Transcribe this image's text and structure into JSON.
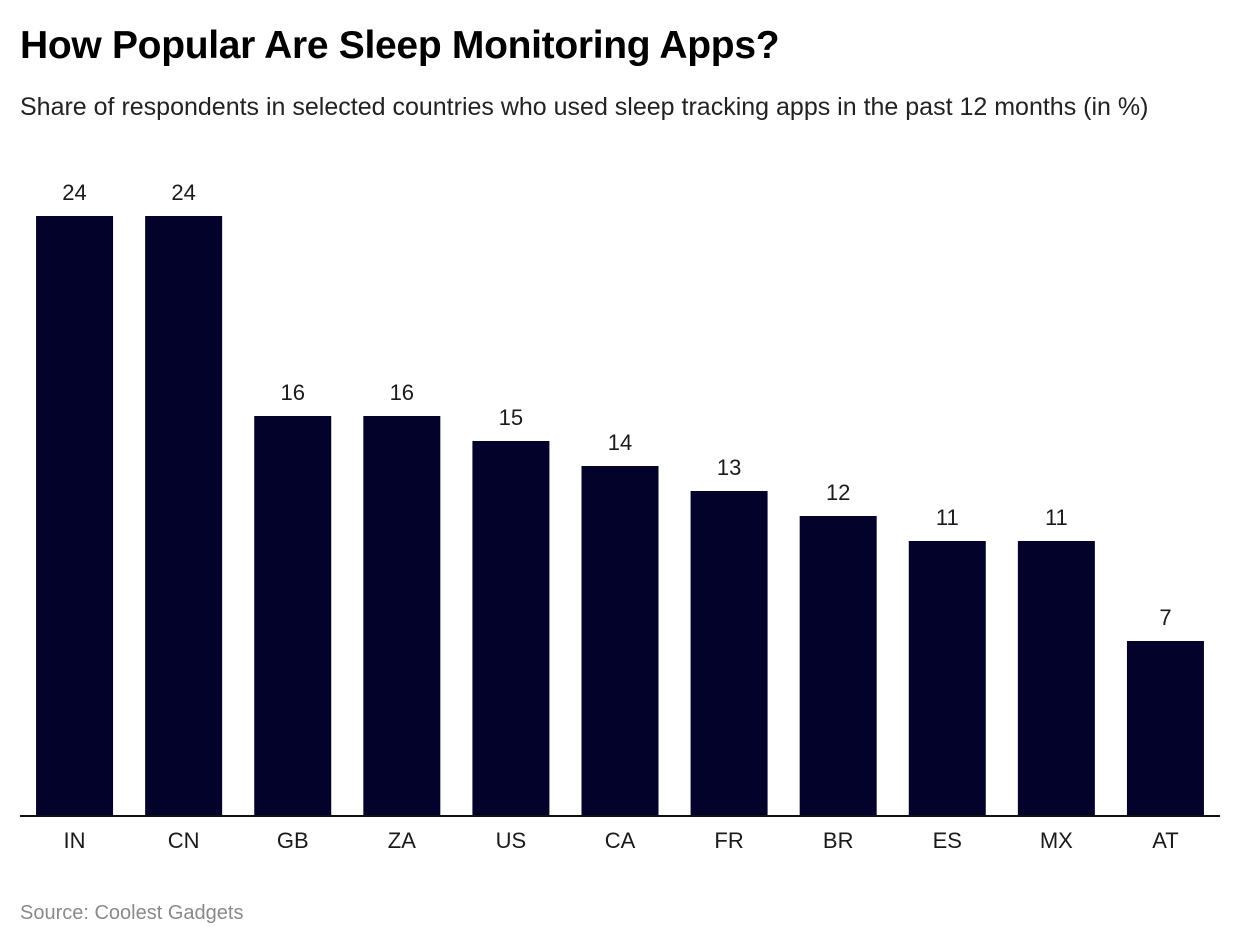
{
  "header": {
    "title": "How Popular Are Sleep Monitoring Apps?",
    "subtitle": "Share of respondents in selected countries who used sleep tracking apps in the past 12 months (in %)"
  },
  "footer": {
    "source": "Source: Coolest Gadgets"
  },
  "colors": {
    "bar": "#03022a",
    "axis": "#111111",
    "text": "#1a1a1a"
  },
  "chart_data": {
    "type": "bar",
    "title": "How Popular Are Sleep Monitoring Apps?",
    "subtitle": "Share of respondents in selected countries who used sleep tracking apps in the past 12 months (in %)",
    "categories": [
      "IN",
      "CN",
      "GB",
      "ZA",
      "US",
      "CA",
      "FR",
      "BR",
      "ES",
      "MX",
      "AT"
    ],
    "values": [
      24,
      24,
      16,
      16,
      15,
      14,
      13,
      12,
      11,
      11,
      7
    ],
    "xlabel": "",
    "ylabel": "",
    "ylim": [
      0,
      24
    ],
    "grid": false,
    "legend": "none",
    "data_labels": true
  }
}
